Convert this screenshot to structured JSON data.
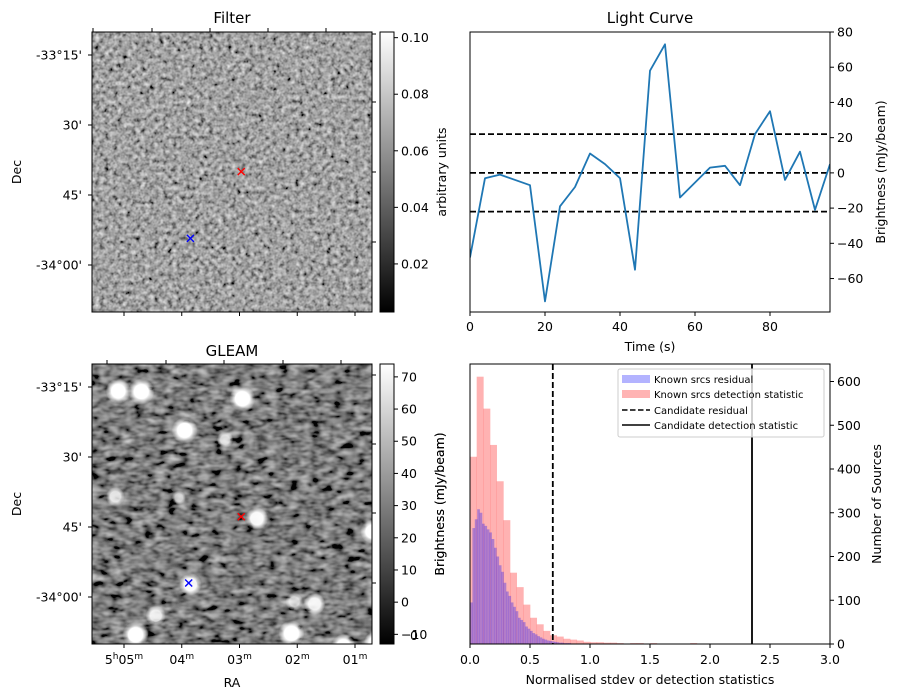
{
  "chart_data": [
    {
      "id": "filter",
      "type": "heatmap",
      "title": "Filter",
      "xlabel": "",
      "ylabel": "Dec",
      "y_tick_labels": [
        "-33°15'",
        "30'",
        "45'",
        "-34°00'"
      ],
      "x_tick_labels": [],
      "colorbar": {
        "label": "arbitrary units",
        "range": [
          0.003,
          0.102
        ],
        "ticks": [
          "0.02",
          "0.04",
          "0.06",
          "0.08",
          "0.10"
        ],
        "tick_values": [
          0.02,
          0.04,
          0.06,
          0.08,
          0.1
        ],
        "colormap": "gray"
      },
      "markers": [
        {
          "name": "candidate",
          "symbol": "x",
          "color": "#ff0000",
          "ra_min": 2.97,
          "dec_arcmin": -40.0
        },
        {
          "name": "reference",
          "symbol": "x",
          "color": "#0000ff",
          "ra_min": 3.85,
          "dec_arcmin": -54.3
        }
      ],
      "texture": "noise"
    },
    {
      "id": "light_curve",
      "type": "line",
      "title": "Light Curve",
      "xlabel": "Time (s)",
      "ylabel": "Brightness (mJy/beam)",
      "xlim": [
        0,
        96
      ],
      "ylim": [
        -79,
        80
      ],
      "x_ticks": [
        0,
        20,
        40,
        60,
        80
      ],
      "y_ticks": [
        -60,
        -40,
        -20,
        0,
        20,
        40,
        60,
        80
      ],
      "y_tick_labels": [
        "−60",
        "−40",
        "−20",
        "0",
        "20",
        "40",
        "60",
        "80"
      ],
      "y_axis_side": "right",
      "series": [
        {
          "name": "light curve",
          "color": "#1f77b4",
          "x": [
            0,
            4,
            8,
            16,
            20,
            24,
            28,
            32,
            36,
            40,
            44,
            48,
            52,
            56,
            64,
            68,
            72,
            76,
            80,
            84,
            88,
            92,
            96
          ],
          "y": [
            -48,
            -3,
            -1,
            -7,
            -73,
            -19,
            -8,
            11,
            5,
            -3,
            -55,
            58,
            73,
            -14,
            3,
            4,
            -7,
            22,
            35,
            -4,
            12,
            -21,
            5
          ]
        }
      ],
      "hlines": [
        {
          "y": 22,
          "style": "dashed",
          "color": "#000000"
        },
        {
          "y": 0,
          "style": "dashed",
          "color": "#000000"
        },
        {
          "y": -22,
          "style": "dashed",
          "color": "#000000"
        }
      ]
    },
    {
      "id": "gleam",
      "type": "heatmap",
      "title": "GLEAM",
      "xlabel": "RA",
      "ylabel": "Dec",
      "y_tick_labels": [
        "-33°15'",
        "30'",
        "45'",
        "-34°00'"
      ],
      "x_tick_labels": [
        {
          "h": "5",
          "hsup": "h",
          "m": "05",
          "msup": "m"
        },
        {
          "h": "",
          "hsup": "",
          "m": "04",
          "msup": "m"
        },
        {
          "h": "",
          "hsup": "",
          "m": "03",
          "msup": "m"
        },
        {
          "h": "",
          "hsup": "",
          "m": "02",
          "msup": "m"
        },
        {
          "h": "",
          "hsup": "",
          "m": "01",
          "msup": "m"
        }
      ],
      "colorbar": {
        "label": "Brightness (mJy/beam)",
        "range": [
          -13,
          74
        ],
        "ticks": [
          "−10",
          "0",
          "10",
          "20",
          "30",
          "40",
          "50",
          "60",
          "70"
        ],
        "tick_values": [
          -10,
          0,
          10,
          20,
          30,
          40,
          50,
          60,
          70
        ],
        "colormap": "gray"
      },
      "markers": [
        {
          "name": "candidate",
          "symbol": "x",
          "color": "#ff0000",
          "ra_min": 2.97,
          "dec_arcmin": -42.8
        },
        {
          "name": "reference",
          "symbol": "x",
          "color": "#0000ff",
          "ra_min": 3.88,
          "dec_arcmin": -57.0
        }
      ],
      "sources": [
        {
          "ra_min": 5.1,
          "dec_arcmin": -15.9,
          "flux": 70
        },
        {
          "ra_min": 4.7,
          "dec_arcmin": -16.0,
          "flux": 74
        },
        {
          "ra_min": 2.95,
          "dec_arcmin": -17.5,
          "flux": 74
        },
        {
          "ra_min": 3.95,
          "dec_arcmin": -24.3,
          "flux": 74
        },
        {
          "ra_min": 3.25,
          "dec_arcmin": -26.3,
          "flux": 35
        },
        {
          "ra_min": 5.15,
          "dec_arcmin": -38.5,
          "flux": 45
        },
        {
          "ra_min": 4.05,
          "dec_arcmin": -38.7,
          "flux": 25
        },
        {
          "ra_min": 2.7,
          "dec_arcmin": -43.2,
          "flux": 60
        },
        {
          "ra_min": 0.7,
          "dec_arcmin": -46.0,
          "flux": 65
        },
        {
          "ra_min": 3.85,
          "dec_arcmin": -57.3,
          "flux": 60
        },
        {
          "ra_min": 2.05,
          "dec_arcmin": -61.0,
          "flux": 40
        },
        {
          "ra_min": 1.7,
          "dec_arcmin": -61.5,
          "flux": 55
        },
        {
          "ra_min": 4.45,
          "dec_arcmin": -64.0,
          "flux": 50
        },
        {
          "ra_min": 4.8,
          "dec_arcmin": -68.1,
          "flux": 74
        },
        {
          "ra_min": 2.1,
          "dec_arcmin": -67.8,
          "flux": 74
        },
        {
          "ra_min": 1.2,
          "dec_arcmin": -70.5,
          "flux": 65
        },
        {
          "ra_min": 0.65,
          "dec_arcmin": -69.8,
          "flux": 60
        }
      ],
      "texture": "diagonal-noise"
    },
    {
      "id": "histogram",
      "type": "bar",
      "title": "",
      "xlabel": "Normalised stdev or detection statistics",
      "ylabel": "Brightness (mJy/beam)",
      "ylabel_right": "Number of Sources",
      "xlim": [
        0,
        3.0
      ],
      "ylim": [
        0,
        640
      ],
      "x_ticks": [
        0.0,
        0.5,
        1.0,
        1.5,
        2.0,
        2.5,
        3.0
      ],
      "x_tick_labels": [
        "0.0",
        "0.5",
        "1.0",
        "1.5",
        "2.0",
        "2.5",
        "3.0"
      ],
      "y_ticks": [
        0,
        100,
        200,
        300,
        400,
        500,
        600
      ],
      "y_axis_side": "right",
      "left_axis_partial_tick_label": "0",
      "series": [
        {
          "name": "Known srcs residual",
          "color": "#0000ff",
          "alpha": 0.3,
          "bin_start": 0.0,
          "bin_width": 0.02,
          "values": [
            95,
            265,
            285,
            308,
            300,
            275,
            270,
            262,
            255,
            240,
            220,
            200,
            180,
            165,
            140,
            120,
            110,
            95,
            85,
            75,
            60,
            55,
            50,
            40,
            35,
            30,
            25,
            22,
            18,
            15,
            12,
            10,
            8,
            7,
            6,
            5,
            4,
            3,
            3,
            2,
            2,
            2,
            1,
            1,
            1
          ]
        },
        {
          "name": "Known srcs detection statistic",
          "color": "#ff0000",
          "alpha": 0.3,
          "bin_start": 0.0,
          "bin_width": 0.0556,
          "values": [
            428,
            611,
            538,
            455,
            372,
            283,
            163,
            130,
            90,
            60,
            45,
            30,
            20,
            17,
            12,
            10,
            8,
            5,
            4,
            4,
            3,
            3,
            2,
            1,
            2,
            2,
            1,
            2,
            1,
            1,
            1,
            0,
            0,
            2,
            1,
            1,
            1,
            0,
            1,
            0,
            0,
            0,
            0,
            0,
            0,
            0,
            0,
            0,
            0,
            1,
            1,
            0,
            0,
            0
          ]
        }
      ],
      "vlines": [
        {
          "name": "Candidate residual",
          "x": 0.69,
          "style": "dashed",
          "color": "#000000"
        },
        {
          "name": "Candidate detection statistic",
          "x": 2.35,
          "style": "solid",
          "color": "#000000"
        }
      ],
      "legend": {
        "placement": "top-right",
        "entries": [
          {
            "label": "Known srcs residual",
            "kind": "patch",
            "color": "#b3b3ff"
          },
          {
            "label": "Known srcs detection statistic",
            "kind": "patch",
            "color": "#ffb3b3"
          },
          {
            "label": "Candidate residual",
            "kind": "dashed-line",
            "color": "#000000"
          },
          {
            "label": "Candidate detection statistic",
            "kind": "solid-line",
            "color": "#000000"
          }
        ]
      }
    }
  ]
}
